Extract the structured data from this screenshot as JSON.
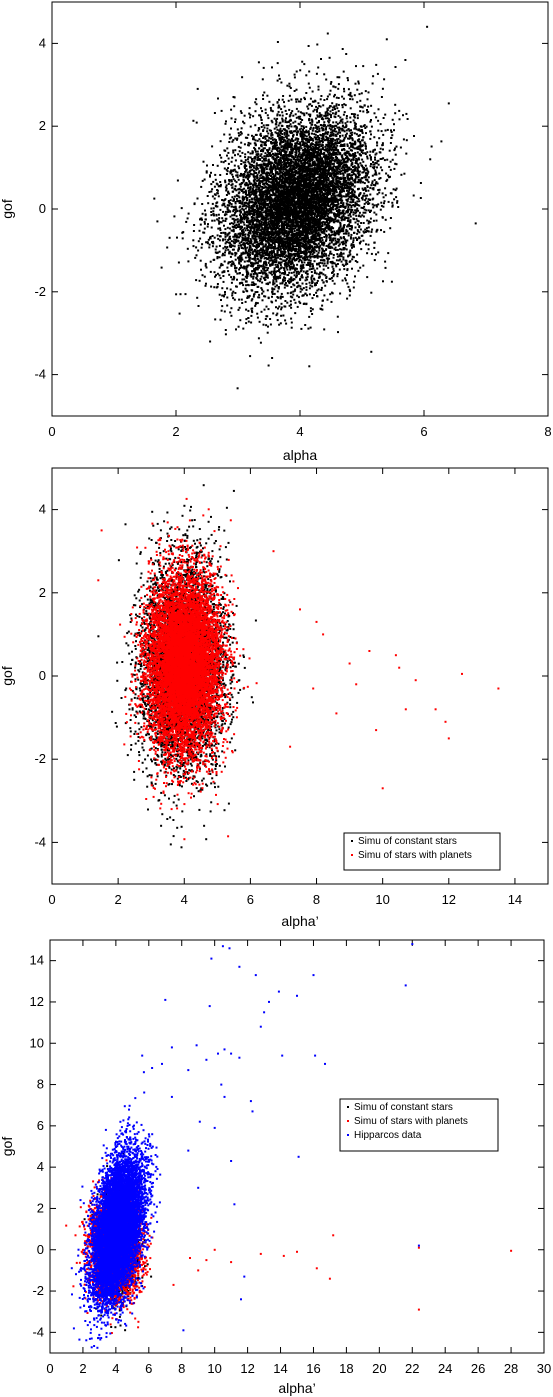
{
  "chart_data": [
    {
      "type": "scatter",
      "xlabel": "alpha",
      "ylabel": "gof",
      "xlim": [
        0,
        8
      ],
      "ylim": [
        -5,
        5
      ],
      "xticks": [
        0,
        2,
        4,
        6,
        8
      ],
      "yticks": [
        -4,
        -2,
        0,
        2,
        4
      ],
      "legend": null,
      "series": [
        {
          "color": "#000000",
          "cloud": {
            "count": 9000,
            "cx": 3.95,
            "cy": 0.2,
            "sx": 0.6,
            "sy": 1.1,
            "rho": 0.28
          },
          "points": [
            [
              1.65,
              0.25
            ],
            [
              1.7,
              -0.3
            ],
            [
              2.35,
              2.9
            ],
            [
              6.05,
              4.4
            ],
            [
              6.4,
              2.55
            ],
            [
              6.1,
              1.2
            ],
            [
              5.4,
              4.1
            ],
            [
              3.55,
              -3.6
            ],
            [
              4.15,
              -3.8
            ],
            [
              5.15,
              -3.45
            ],
            [
              2.55,
              -3.2
            ],
            [
              5.7,
              3.6
            ]
          ]
        }
      ]
    },
    {
      "type": "scatter",
      "xlabel": "alpha’",
      "ylabel": "gof",
      "xlim": [
        0,
        15
      ],
      "ylim": [
        -5,
        5
      ],
      "xticks": [
        0,
        2,
        4,
        6,
        8,
        10,
        12,
        14
      ],
      "yticks": [
        -4,
        -2,
        0,
        2,
        4
      ],
      "legend": "bottom-right",
      "series": [
        {
          "name": "Simu of constant stars",
          "color": "#000000",
          "cloud": {
            "count": 6000,
            "cx": 3.95,
            "cy": 0.2,
            "sx": 0.6,
            "sy": 1.2,
            "rho": 0.05
          },
          "points": [
            [
              5.5,
              4.45
            ],
            [
              3.3,
              -3.6
            ],
            [
              4.6,
              -3.6
            ]
          ]
        },
        {
          "name": "Simu of stars with planets",
          "color": "#ff0000",
          "cloud": {
            "count": 9000,
            "cx": 4.0,
            "cy": 0.3,
            "sx": 0.55,
            "sy": 1.05,
            "rho": 0.0
          },
          "points": [
            [
              1.5,
              3.5
            ],
            [
              1.4,
              2.3
            ],
            [
              7.9,
              -0.3
            ],
            [
              8.2,
              1.0
            ],
            [
              9.6,
              0.6
            ],
            [
              10.0,
              -2.7
            ],
            [
              10.5,
              0.2
            ],
            [
              10.7,
              -0.8
            ],
            [
              11.0,
              -0.1
            ],
            [
              11.6,
              -0.8
            ],
            [
              11.9,
              -1.1
            ],
            [
              12.0,
              -1.5
            ],
            [
              12.4,
              0.05
            ],
            [
              13.5,
              -0.3
            ],
            [
              7.5,
              1.6
            ],
            [
              8.0,
              1.3
            ],
            [
              9.2,
              -0.2
            ],
            [
              9.8,
              -1.3
            ],
            [
              10.4,
              0.5
            ],
            [
              8.6,
              -0.9
            ],
            [
              7.2,
              -1.7
            ],
            [
              6.7,
              3.0
            ],
            [
              9.0,
              0.3
            ]
          ]
        }
      ]
    },
    {
      "type": "scatter",
      "xlabel": "alpha’",
      "ylabel": "gof",
      "xlim": [
        0,
        30
      ],
      "ylim": [
        -5,
        15
      ],
      "xticks": [
        0,
        2,
        4,
        6,
        8,
        10,
        12,
        14,
        16,
        18,
        20,
        22,
        24,
        26,
        28,
        30
      ],
      "yticks": [
        -4,
        -2,
        0,
        2,
        4,
        6,
        8,
        10,
        12,
        14
      ],
      "legend": "middle-right",
      "series": [
        {
          "name": "Simu of constant stars",
          "color": "#000000",
          "cloud": {
            "count": 2500,
            "cx": 4.0,
            "cy": 0.2,
            "sx": 0.55,
            "sy": 1.1,
            "rho": 0.0
          },
          "points": []
        },
        {
          "name": "Simu of stars with planets",
          "color": "#ff0000",
          "cloud": {
            "count": 5000,
            "cx": 4.0,
            "cy": 0.2,
            "sx": 0.7,
            "sy": 1.1,
            "rho": 0.0
          },
          "points": [
            [
              7.5,
              -1.7
            ],
            [
              8.5,
              -0.4
            ],
            [
              9.5,
              -0.5
            ],
            [
              10.0,
              0.0
            ],
            [
              12.8,
              -0.2
            ],
            [
              15.0,
              -0.1
            ],
            [
              16.2,
              -0.9
            ],
            [
              17.0,
              -1.4
            ],
            [
              17.2,
              0.7
            ],
            [
              22.4,
              0.1
            ],
            [
              22.4,
              -2.9
            ],
            [
              28.0,
              -0.05
            ],
            [
              9.0,
              -1.0
            ],
            [
              11.0,
              -0.6
            ],
            [
              14.2,
              -0.3
            ]
          ]
        },
        {
          "name": "Hipparcos data",
          "color": "#0000ff",
          "cloud": {
            "count": 9000,
            "cx": 4.1,
            "cy": 1.0,
            "sx": 0.75,
            "sy": 1.7,
            "rho": 0.42
          },
          "points": [
            [
              10.5,
              14.7
            ],
            [
              10.9,
              14.6
            ],
            [
              11.5,
              13.7
            ],
            [
              9.8,
              14.1
            ],
            [
              12.5,
              13.3
            ],
            [
              13.3,
              12.0
            ],
            [
              13.0,
              11.5
            ],
            [
              12.8,
              10.8
            ],
            [
              13.9,
              12.5
            ],
            [
              14.1,
              9.4
            ],
            [
              15.0,
              12.3
            ],
            [
              16.0,
              13.3
            ],
            [
              16.1,
              9.4
            ],
            [
              16.7,
              9.0
            ],
            [
              21.6,
              12.8
            ],
            [
              22.0,
              14.8
            ],
            [
              22.4,
              0.2
            ],
            [
              15.1,
              4.5
            ],
            [
              12.2,
              7.2
            ],
            [
              12.3,
              6.7
            ],
            [
              10.4,
              8.0
            ],
            [
              11.0,
              9.5
            ],
            [
              11.5,
              9.3
            ],
            [
              10.6,
              9.7
            ],
            [
              7.0,
              12.1
            ],
            [
              9.7,
              11.8
            ],
            [
              8.4,
              8.7
            ],
            [
              9.5,
              9.2
            ],
            [
              10.2,
              9.5
            ],
            [
              8.9,
              9.9
            ],
            [
              10.6,
              7.4
            ],
            [
              7.4,
              7.4
            ],
            [
              9.1,
              6.2
            ],
            [
              10.0,
              5.9
            ],
            [
              11.0,
              4.3
            ],
            [
              11.2,
              2.2
            ],
            [
              11.8,
              -1.3
            ],
            [
              11.6,
              -2.4
            ],
            [
              9.0,
              3.0
            ],
            [
              8.4,
              4.8
            ],
            [
              5.7,
              8.6
            ],
            [
              6.2,
              8.8
            ],
            [
              5.6,
              9.4
            ],
            [
              7.4,
              9.8
            ],
            [
              6.8,
              9.0
            ],
            [
              8.1,
              -3.9
            ]
          ]
        }
      ]
    }
  ]
}
